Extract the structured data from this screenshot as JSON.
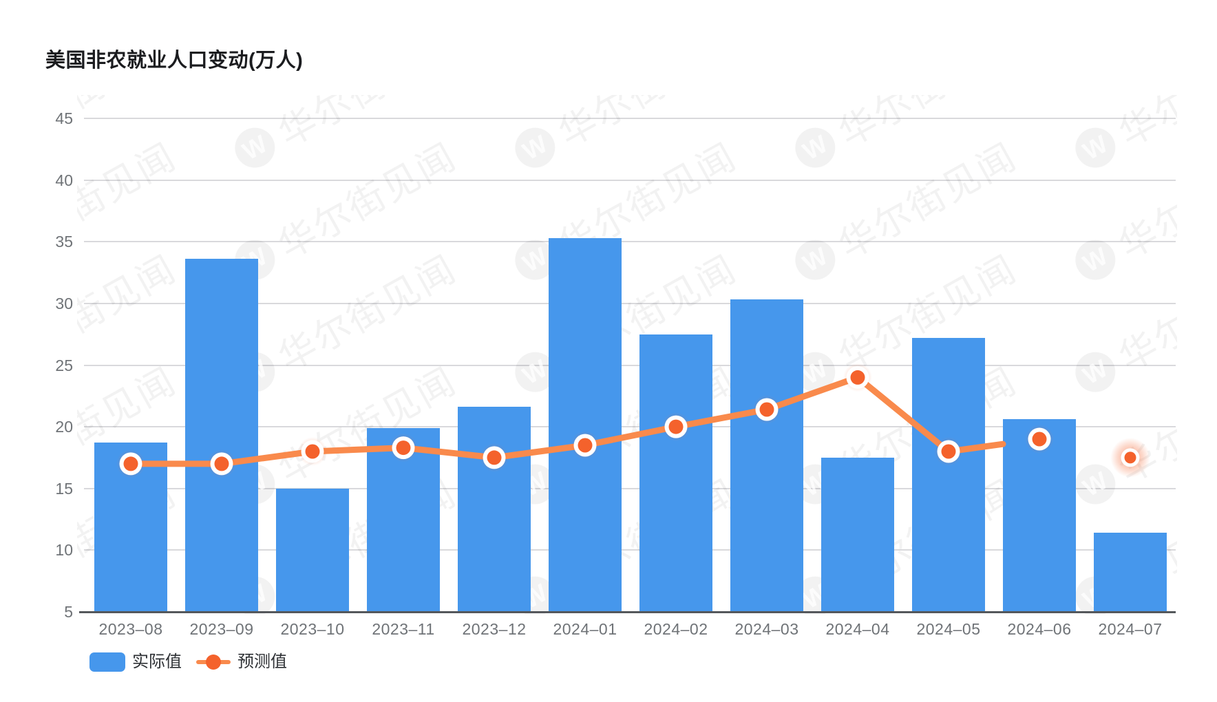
{
  "chart_data": {
    "type": "bar+line",
    "title": "美国非农就业人口变动(万人)",
    "categories": [
      "2023-08",
      "2023-09",
      "2023-10",
      "2023-11",
      "2023-12",
      "2024-01",
      "2024-02",
      "2024-03",
      "2024-04",
      "2024-05",
      "2024-06",
      "2024-07"
    ],
    "series": [
      {
        "name": "实际值",
        "type": "bar",
        "color": "#4697EC",
        "values": [
          18.7,
          33.6,
          15.0,
          19.9,
          21.6,
          35.3,
          27.5,
          30.3,
          17.5,
          27.2,
          20.6,
          11.4
        ]
      },
      {
        "name": "预测值",
        "type": "line",
        "color": "#F98A4C",
        "dot_color": "#F4622C",
        "values": [
          17.0,
          17.0,
          18.0,
          18.3,
          17.5,
          18.5,
          20.0,
          21.4,
          24.0,
          18.0,
          19.0,
          17.5
        ],
        "line_connected_through": "2024-05",
        "isolated_points": [
          "2024-06",
          "2024-07"
        ],
        "highlighted_point": "2024-07"
      }
    ],
    "xlabel": "",
    "ylabel": "",
    "ylim": [
      5,
      45
    ],
    "ytick_interval": 5,
    "grid": "horizontal",
    "legend_position": "bottom-left"
  },
  "watermark": {
    "text": "华尔街见闻",
    "logo_letter": "W"
  },
  "colors": {
    "bar": "#4697EC",
    "line": "#F98A4C",
    "dot": "#F4622C",
    "title": "#1B1C1F",
    "axis_label": "#6F7377",
    "legend_label": "#2E3135",
    "grid_line": "#D9D9DC",
    "axis_line": "#54575B",
    "background": "#FFFFFF"
  }
}
